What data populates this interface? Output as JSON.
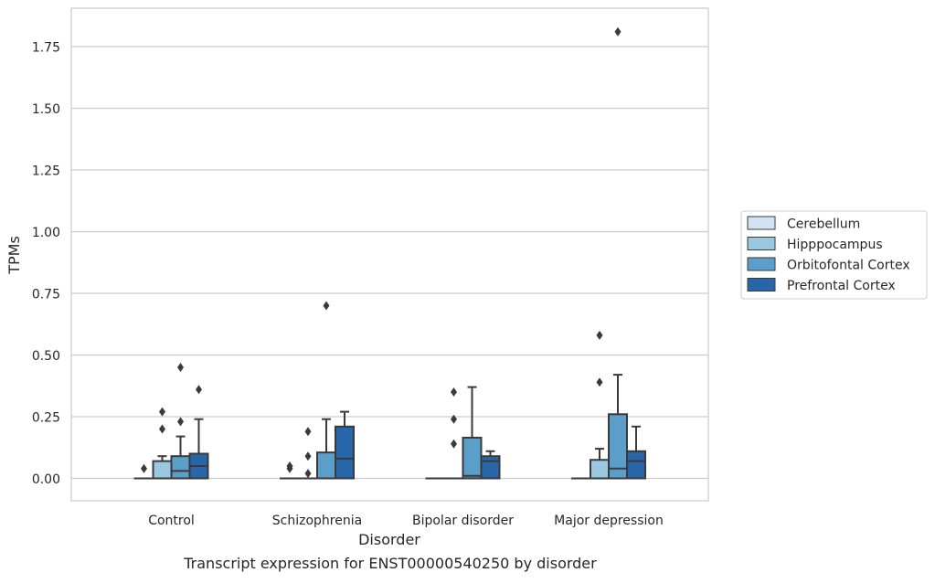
{
  "chart_data": {
    "type": "box",
    "xlabel": "Disorder",
    "ylabel": "TPMs",
    "caption": "Transcript expression for ENST00000540250 by disorder",
    "ylim": [
      -0.09,
      1.9
    ],
    "yticks": [
      0.0,
      0.25,
      0.5,
      0.75,
      1.0,
      1.25,
      1.5,
      1.75
    ],
    "ytick_labels": [
      "0.00",
      "0.25",
      "0.50",
      "0.75",
      "1.00",
      "1.25",
      "1.50",
      "1.75"
    ],
    "grid": "horizontal",
    "legend_position": "right",
    "categories": [
      "Control",
      "Schizophrenia",
      "Bipolar disorder",
      "Major depression"
    ],
    "series": [
      {
        "name": "Cerebellum",
        "color": "#d2e3f3",
        "boxes": [
          {
            "whislo": 0,
            "q1": 0,
            "med": 0,
            "q3": 0,
            "whishi": 0,
            "fliers": [
              0.04
            ]
          },
          {
            "whislo": 0,
            "q1": 0,
            "med": 0,
            "q3": 0,
            "whishi": 0,
            "fliers": [
              0.04,
              0.05
            ]
          },
          {
            "whislo": 0,
            "q1": 0,
            "med": 0,
            "q3": 0,
            "whishi": 0,
            "fliers": []
          },
          {
            "whislo": 0,
            "q1": 0,
            "med": 0,
            "q3": 0,
            "whishi": 0,
            "fliers": []
          }
        ]
      },
      {
        "name": "Hipppocampus",
        "color": "#9ac8e0",
        "boxes": [
          {
            "whislo": 0,
            "q1": 0,
            "med": 0,
            "q3": 0.07,
            "whishi": 0.09,
            "fliers": [
              0.2,
              0.27
            ]
          },
          {
            "whislo": 0,
            "q1": 0,
            "med": 0,
            "q3": 0,
            "whishi": 0,
            "fliers": [
              0.02,
              0.09,
              0.19
            ]
          },
          {
            "whislo": 0,
            "q1": 0,
            "med": 0,
            "q3": 0,
            "whishi": 0,
            "fliers": [
              0.14,
              0.24,
              0.35
            ]
          },
          {
            "whislo": 0,
            "q1": 0,
            "med": 0,
            "q3": 0.075,
            "whishi": 0.12,
            "fliers": [
              0.39,
              0.58
            ]
          }
        ]
      },
      {
        "name": "Orbitofontal Cortex",
        "color": "#5a9ec9",
        "boxes": [
          {
            "whislo": 0,
            "q1": 0,
            "med": 0.03,
            "q3": 0.09,
            "whishi": 0.17,
            "fliers": [
              0.23,
              0.45
            ]
          },
          {
            "whislo": 0,
            "q1": 0,
            "med": 0,
            "q3": 0.105,
            "whishi": 0.24,
            "fliers": [
              0.7
            ]
          },
          {
            "whislo": 0,
            "q1": 0,
            "med": 0.01,
            "q3": 0.165,
            "whishi": 0.37,
            "fliers": []
          },
          {
            "whislo": 0,
            "q1": 0,
            "med": 0.04,
            "q3": 0.26,
            "whishi": 0.42,
            "fliers": [
              1.81
            ]
          }
        ]
      },
      {
        "name": "Prefrontal Cortex",
        "color": "#2767a9",
        "boxes": [
          {
            "whislo": 0,
            "q1": 0,
            "med": 0.05,
            "q3": 0.1,
            "whishi": 0.24,
            "fliers": [
              0.36
            ]
          },
          {
            "whislo": 0,
            "q1": 0,
            "med": 0.08,
            "q3": 0.21,
            "whishi": 0.27,
            "fliers": []
          },
          {
            "whislo": 0,
            "q1": 0,
            "med": 0.07,
            "q3": 0.09,
            "whishi": 0.11,
            "fliers": []
          },
          {
            "whislo": 0,
            "q1": 0,
            "med": 0.07,
            "q3": 0.11,
            "whishi": 0.21,
            "fliers": []
          }
        ]
      }
    ]
  }
}
